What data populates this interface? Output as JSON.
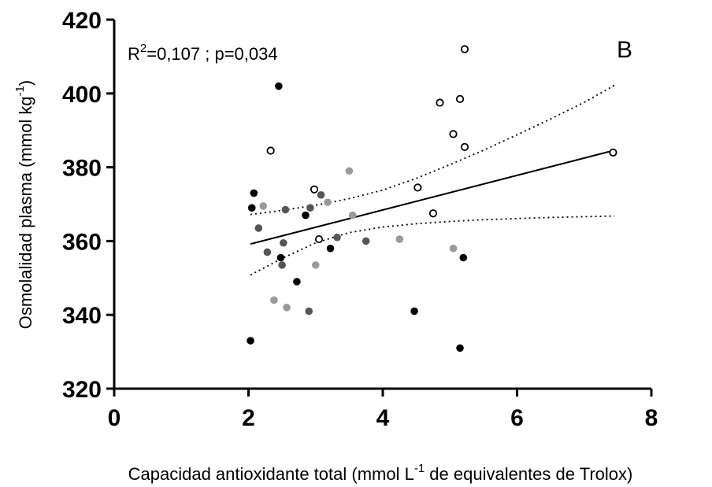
{
  "chart_data": {
    "type": "scatter",
    "panel_label": "B",
    "annotation": {
      "r2_label": "R",
      "r2_sup": "2",
      "r2_value": "=0,107 ; p=0,034"
    },
    "xlabel": {
      "pre": "Capacidad antioxidante total  (mmol L",
      "sup": "-1",
      "post": " de equivalentes de  Trolox)"
    },
    "ylabel": {
      "pre": "Osmolalidad plasma  (mmol kg",
      "sup": "-1",
      "post": ")"
    },
    "xlim": [
      0,
      8
    ],
    "ylim": [
      320,
      420
    ],
    "xticks": [
      0,
      2,
      4,
      6,
      8
    ],
    "yticks": [
      320,
      340,
      360,
      380,
      400,
      420
    ],
    "grid": false,
    "colors": {
      "black": "#000000",
      "dark_gray": "#555555",
      "light_gray": "#9a9a9a",
      "open_stroke": "#000000"
    },
    "series": [
      {
        "style": "black",
        "points": [
          [
            2.05,
            369
          ],
          [
            2.08,
            373
          ],
          [
            2.03,
            333
          ],
          [
            2.45,
            402
          ],
          [
            2.48,
            355.5
          ],
          [
            2.85,
            367
          ],
          [
            2.72,
            349
          ],
          [
            3.22,
            358
          ],
          [
            4.47,
            341
          ],
          [
            5.15,
            331
          ],
          [
            5.2,
            355.5
          ]
        ]
      },
      {
        "style": "dark_gray",
        "points": [
          [
            2.15,
            363.5
          ],
          [
            2.28,
            357
          ],
          [
            2.52,
            359.5
          ],
          [
            2.5,
            353.5
          ],
          [
            2.55,
            368.5
          ],
          [
            2.92,
            369
          ],
          [
            3.08,
            372.5
          ],
          [
            3.32,
            361
          ],
          [
            2.9,
            341
          ],
          [
            3.75,
            360
          ]
        ]
      },
      {
        "style": "light_gray",
        "points": [
          [
            2.22,
            369.5
          ],
          [
            2.38,
            344
          ],
          [
            2.57,
            342
          ],
          [
            3.0,
            353.5
          ],
          [
            3.18,
            370.5
          ],
          [
            3.5,
            379
          ],
          [
            3.55,
            367
          ],
          [
            4.25,
            360.5
          ],
          [
            5.05,
            358
          ]
        ]
      },
      {
        "style": "open",
        "points": [
          [
            2.33,
            384.5
          ],
          [
            2.98,
            374
          ],
          [
            3.05,
            360.5
          ],
          [
            4.52,
            374.5
          ],
          [
            4.75,
            367.5
          ],
          [
            4.85,
            397.5
          ],
          [
            5.05,
            389
          ],
          [
            5.15,
            398.5
          ],
          [
            5.22,
            385.5
          ],
          [
            5.22,
            412
          ],
          [
            7.43,
            384
          ]
        ]
      }
    ],
    "regression": {
      "x": [
        2.03,
        7.45
      ],
      "y": [
        359.2,
        384.6
      ]
    },
    "ci_upper": {
      "x": [
        2.03,
        2.5,
        3.0,
        3.5,
        4.0,
        4.5,
        5.0,
        5.5,
        6.0,
        6.5,
        7.0,
        7.45
      ],
      "y": [
        367.2,
        368.3,
        369.7,
        371.5,
        373.8,
        377.0,
        380.7,
        384.6,
        388.8,
        393.1,
        397.6,
        402.2
      ]
    },
    "ci_lower": {
      "x": [
        2.03,
        2.5,
        3.0,
        3.5,
        4.0,
        4.5,
        5.0,
        5.5,
        6.0,
        6.5,
        7.0,
        7.45
      ],
      "y": [
        350.8,
        355.3,
        359.5,
        362.3,
        363.8,
        364.7,
        365.3,
        365.8,
        366.1,
        366.4,
        366.6,
        366.8
      ]
    }
  }
}
